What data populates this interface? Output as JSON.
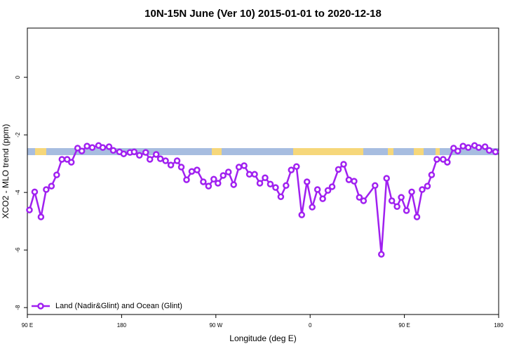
{
  "chart_data": {
    "type": "line",
    "title": "10N-15N June (Ver 10)   2015-01-01 to 2020-12-18",
    "x_label": "Longitude (deg E)",
    "y_label": "XCO2 - MLO trend (ppm)",
    "x": [
      92,
      97,
      103,
      108,
      113,
      118,
      123,
      128,
      132,
      138,
      142,
      147,
      152,
      158,
      162,
      168,
      172,
      178,
      182,
      188,
      192,
      197,
      203,
      207,
      213,
      217,
      222,
      227,
      233,
      237,
      242,
      247,
      252,
      258,
      263,
      268,
      272,
      277,
      282,
      287,
      292,
      297,
      302,
      307,
      312,
      317,
      322,
      327,
      332,
      337,
      342,
      347,
      352,
      357,
      362,
      367,
      372,
      377,
      381,
      387,
      392,
      397,
      402,
      407,
      411,
      422,
      428,
      433,
      438,
      443,
      447,
      452,
      457,
      462,
      467,
      472,
      476,
      481,
      487,
      491,
      497,
      501,
      506,
      511,
      517,
      521,
      527,
      531,
      537
    ],
    "series": [
      {
        "name": "Land (Nadir&Glint) and Ocean (Glint)",
        "color": "#a020f0",
        "values": [
          -4.61,
          -3.98,
          -4.85,
          -3.9,
          -3.78,
          -3.39,
          -2.85,
          -2.85,
          -2.95,
          -2.46,
          -2.56,
          -2.39,
          -2.44,
          -2.37,
          -2.44,
          -2.41,
          -2.54,
          -2.59,
          -2.66,
          -2.61,
          -2.59,
          -2.71,
          -2.61,
          -2.85,
          -2.68,
          -2.83,
          -2.9,
          -3.05,
          -2.9,
          -3.12,
          -3.56,
          -3.27,
          -3.22,
          -3.63,
          -3.78,
          -3.54,
          -3.68,
          -3.41,
          -3.29,
          -3.73,
          -3.12,
          -3.07,
          -3.37,
          -3.37,
          -3.68,
          -3.49,
          -3.71,
          -3.83,
          -4.15,
          -3.76,
          -3.22,
          -3.1,
          -4.78,
          -3.63,
          -4.51,
          -3.9,
          -4.22,
          -3.93,
          -3.8,
          -3.2,
          -3.02,
          -3.56,
          -3.61,
          -4.17,
          -4.29,
          -3.76,
          -6.15,
          -3.51,
          -4.29,
          -4.49,
          -4.17,
          -4.63,
          -3.98,
          -4.85,
          -3.9,
          -3.78,
          -3.39,
          -2.85,
          -2.85,
          -2.95,
          -2.46,
          -2.56,
          -2.39,
          -2.44,
          -2.37,
          -2.44,
          -2.41,
          -2.54,
          -2.59
        ]
      }
    ],
    "xlim": [
      90,
      540
    ],
    "ylim": [
      -8.24,
      1.71
    ],
    "xticks": [
      {
        "value": 90,
        "label": "90 E"
      },
      180,
      {
        "value": 270,
        "label": "90 W"
      },
      {
        "value": 360,
        "label": "0"
      },
      {
        "value": 450,
        "label": "90 E"
      },
      {
        "value": 540,
        "label": "180"
      }
    ],
    "yticks": [
      0,
      -2,
      -4,
      -6,
      -8
    ],
    "legend_position": "bottom-left"
  }
}
